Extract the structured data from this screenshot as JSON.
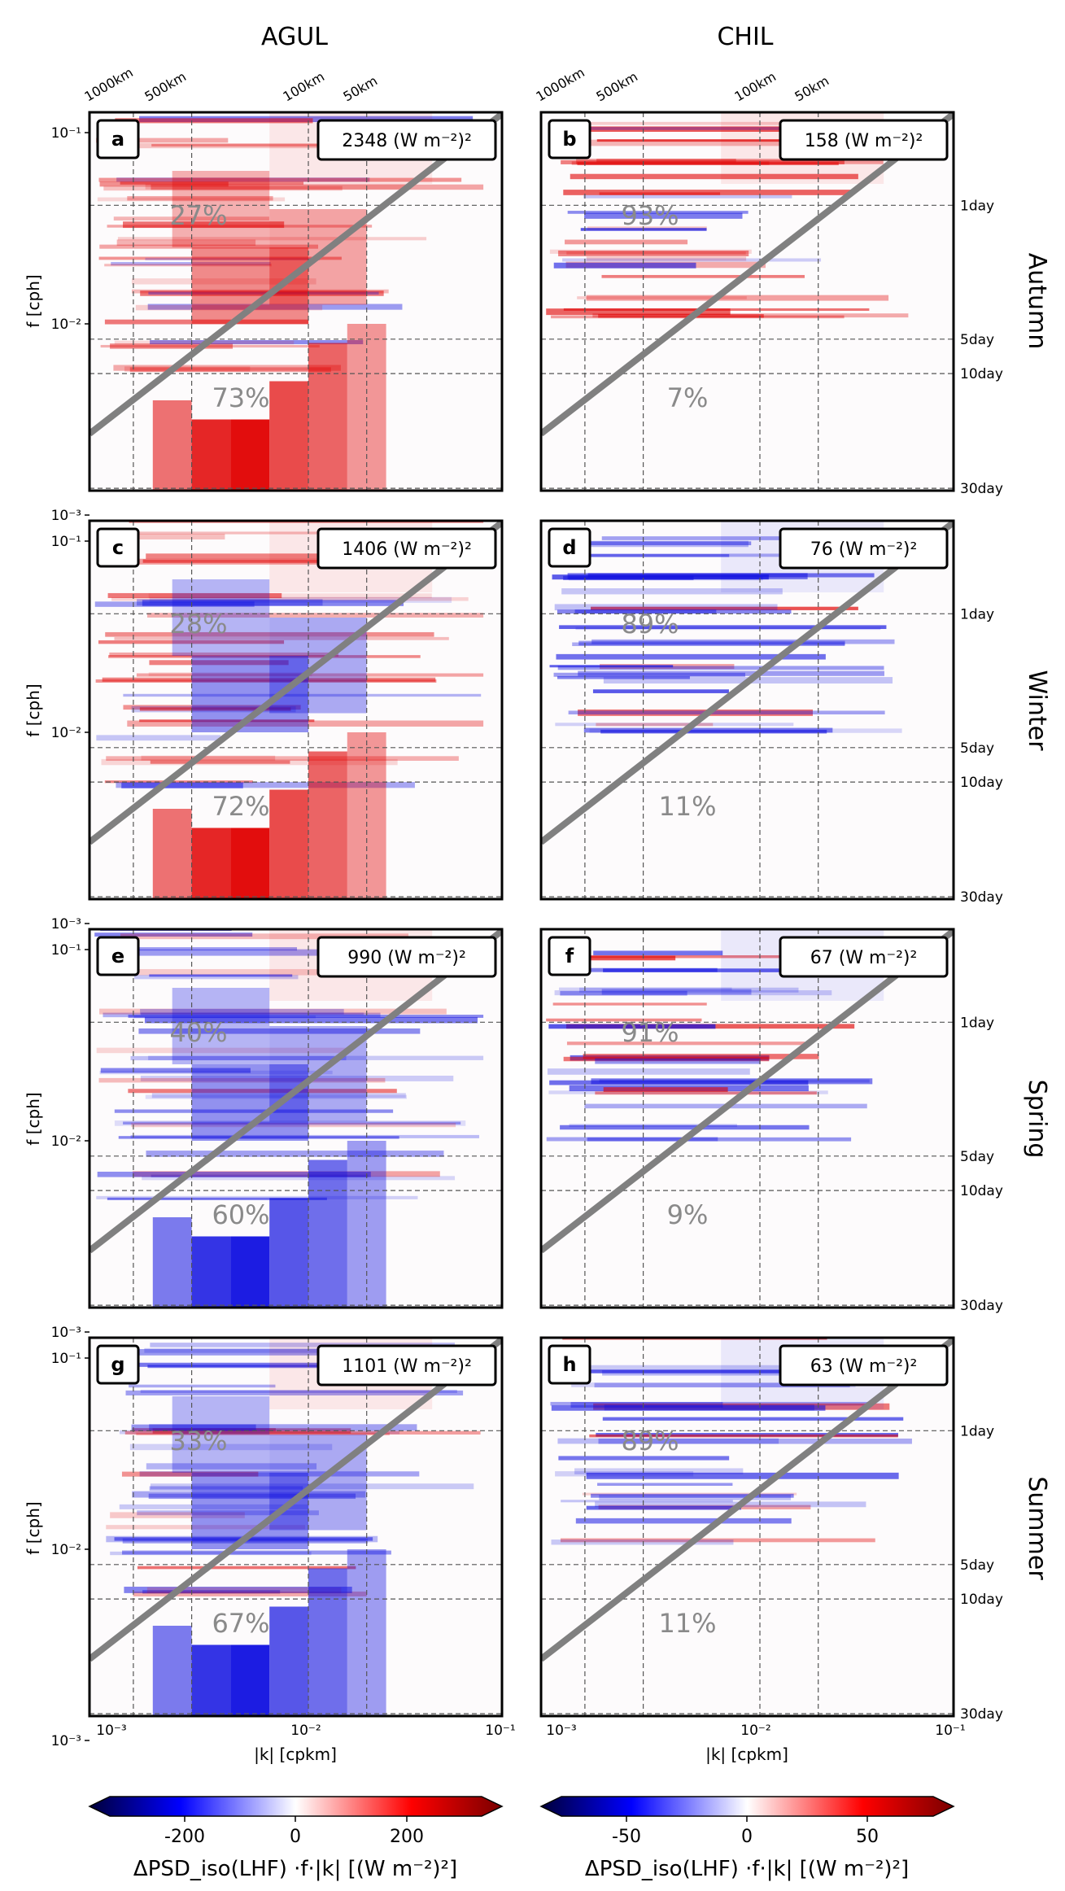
{
  "figure": {
    "column_titles": [
      "AGUL",
      "CHIL"
    ],
    "row_labels": [
      "Autumn",
      "Winter",
      "Spring",
      "Summer"
    ],
    "ylabel": "f [cph]",
    "xlabel": "|k| [cpkm]",
    "x_ticks": [
      "10⁻³",
      "10⁻²",
      "10⁻¹"
    ],
    "y_ticks": [
      "10⁻¹",
      "10⁻²",
      "10⁻³"
    ],
    "top_wavelength_labels": [
      "1000km",
      "500km",
      "100km",
      "50km"
    ],
    "period_labels": [
      "1day",
      "5day",
      "10day",
      "30day"
    ],
    "colorbars": [
      {
        "label": "ΔPSD_iso(LHF) ·f·|k|  [(W m⁻²)²]",
        "ticks": [
          "-200",
          "0",
          "200"
        ],
        "vmin": -330,
        "vmax": 330
      },
      {
        "label": "ΔPSD_iso(LHF) ·f·|k|  [(W m⁻²)²]",
        "ticks": [
          "-50",
          "0",
          "50"
        ],
        "vmin": -75,
        "vmax": 75
      }
    ],
    "colors": {
      "positive": "#e00000",
      "negative": "#1010e0",
      "diagonal": "#808080",
      "percent_text": "#8a8a8a"
    }
  },
  "chart_data": [
    {
      "type": "heatmap",
      "panel": "a",
      "region": "AGUL",
      "season": "Autumn",
      "total": "2348 (W m⁻²)²",
      "upper_pct": "27%",
      "lower_pct": "73%",
      "dominant_sign": "positive"
    },
    {
      "type": "heatmap",
      "panel": "b",
      "region": "CHIL",
      "season": "Autumn",
      "total": "158 (W m⁻²)²",
      "upper_pct": "93%",
      "lower_pct": "7%",
      "dominant_sign": "positive"
    },
    {
      "type": "heatmap",
      "panel": "c",
      "region": "AGUL",
      "season": "Winter",
      "total": "1406 (W m⁻²)²",
      "upper_pct": "28%",
      "lower_pct": "72%",
      "dominant_sign": "mixed"
    },
    {
      "type": "heatmap",
      "panel": "d",
      "region": "CHIL",
      "season": "Winter",
      "total": "76 (W m⁻²)²",
      "upper_pct": "89%",
      "lower_pct": "11%",
      "dominant_sign": "negative"
    },
    {
      "type": "heatmap",
      "panel": "e",
      "region": "AGUL",
      "season": "Spring",
      "total": "990 (W m⁻²)²",
      "upper_pct": "40%",
      "lower_pct": "60%",
      "dominant_sign": "negative"
    },
    {
      "type": "heatmap",
      "panel": "f",
      "region": "CHIL",
      "season": "Spring",
      "total": "67 (W m⁻²)²",
      "upper_pct": "91%",
      "lower_pct": "9%",
      "dominant_sign": "negative"
    },
    {
      "type": "heatmap",
      "panel": "g",
      "region": "AGUL",
      "season": "Summer",
      "total": "1101 (W m⁻²)²",
      "upper_pct": "33%",
      "lower_pct": "67%",
      "dominant_sign": "negative"
    },
    {
      "type": "heatmap",
      "panel": "h",
      "region": "CHIL",
      "season": "Summer",
      "total": "63 (W m⁻²)²",
      "upper_pct": "89%",
      "lower_pct": "11%",
      "dominant_sign": "negative"
    }
  ]
}
